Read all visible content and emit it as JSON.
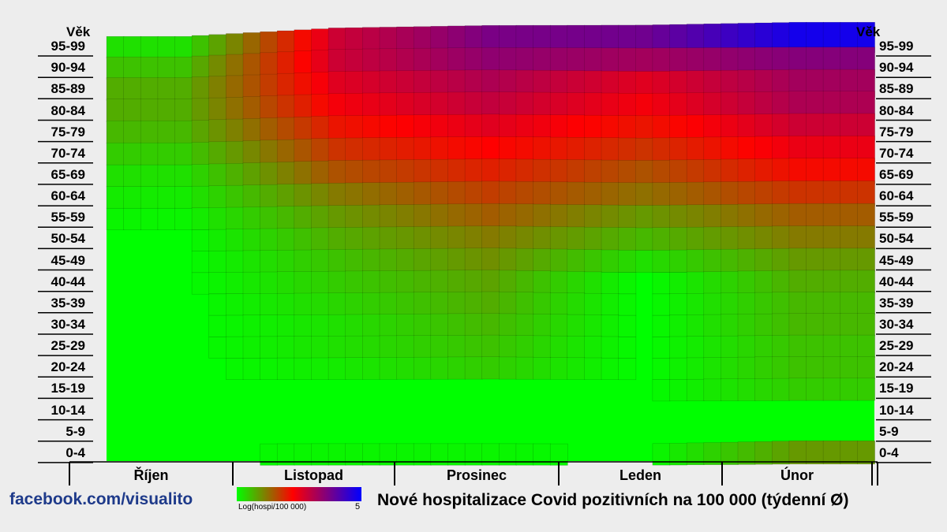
{
  "chart_data": {
    "type": "heatmap",
    "title": "Nové hospitalizace Covid pozitivních na 100 000 (týdenní Ø)",
    "ylabel": "Věk",
    "age_groups": [
      "95-99",
      "90-94",
      "85-89",
      "80-84",
      "75-79",
      "70-74",
      "65-69",
      "60-64",
      "55-59",
      "50-54",
      "45-49",
      "40-44",
      "35-39",
      "30-34",
      "25-29",
      "20-24",
      "15-19",
      "10-14",
      "5-9",
      "0-4"
    ],
    "months": [
      "Říjen",
      "Listopad",
      "Prosinec",
      "Leden",
      "Únor"
    ],
    "value_scale": "Log(hospi/100 000)",
    "scale_min": 0,
    "scale_max": 5,
    "colorscale": [
      "#00ff00",
      "#ff0000",
      "#0000ff"
    ],
    "series_by_month": [
      {
        "age": "95-99",
        "values": [
          0.3,
          3.0,
          3.8,
          3.9,
          4.8
        ]
      },
      {
        "age": "90-94",
        "values": [
          0.6,
          3.0,
          3.6,
          3.4,
          3.7
        ]
      },
      {
        "age": "85-89",
        "values": [
          0.8,
          2.8,
          3.3,
          2.8,
          3.4
        ]
      },
      {
        "age": "80-84",
        "values": [
          0.8,
          2.6,
          3.1,
          2.6,
          3.3
        ]
      },
      {
        "age": "75-79",
        "values": [
          0.7,
          2.3,
          2.8,
          2.3,
          3.0
        ]
      },
      {
        "age": "70-74",
        "values": [
          0.5,
          2.0,
          2.5,
          2.0,
          2.7
        ]
      },
      {
        "age": "65-69",
        "values": [
          0.3,
          1.7,
          2.2,
          1.7,
          2.4
        ]
      },
      {
        "age": "60-64",
        "values": [
          0.2,
          1.3,
          1.9,
          1.4,
          2.0
        ]
      },
      {
        "age": "55-59",
        "values": [
          0.1,
          1.0,
          1.6,
          1.0,
          1.6
        ]
      },
      {
        "age": "50-54",
        "values": [
          0.0,
          0.8,
          1.3,
          0.7,
          1.3
        ]
      },
      {
        "age": "45-49",
        "values": [
          0.0,
          0.6,
          1.1,
          0.3,
          1.0
        ]
      },
      {
        "age": "40-44",
        "values": [
          0.0,
          0.5,
          0.9,
          0.0,
          0.8
        ]
      },
      {
        "age": "35-39",
        "values": [
          0.0,
          0.4,
          0.8,
          0.0,
          0.7
        ]
      },
      {
        "age": "30-34",
        "values": [
          0.0,
          0.3,
          0.7,
          0.0,
          0.7
        ]
      },
      {
        "age": "25-29",
        "values": [
          0.0,
          0.3,
          0.6,
          0.0,
          0.6
        ]
      },
      {
        "age": "20-24",
        "values": [
          0.0,
          0.2,
          0.5,
          0.0,
          0.6
        ]
      },
      {
        "age": "15-19",
        "values": [
          0.0,
          0.0,
          0.0,
          0.0,
          0.5
        ]
      },
      {
        "age": "10-14",
        "values": [
          0.0,
          0.0,
          0.0,
          0.0,
          0.0
        ]
      },
      {
        "age": "5-9",
        "values": [
          0.0,
          0.0,
          0.0,
          0.0,
          0.0
        ]
      },
      {
        "age": "0-4",
        "values": [
          0.0,
          0.1,
          0.1,
          0.0,
          1.0
        ]
      }
    ]
  },
  "watermark": "facebook.com/visualito",
  "legend": {
    "label": "Log(hospi/100 000)",
    "max_label": "5"
  }
}
